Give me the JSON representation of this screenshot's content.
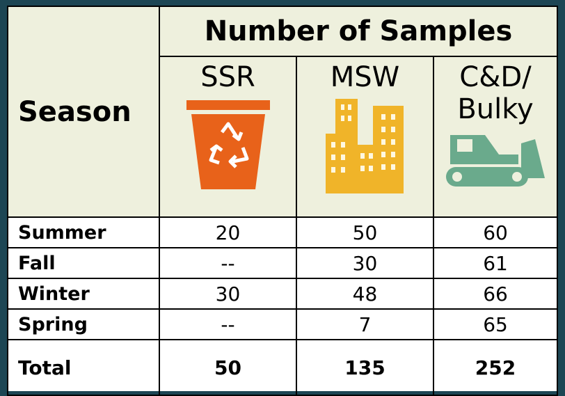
{
  "header": {
    "season": "Season",
    "group": "Number of Samples",
    "columns": [
      "SSR",
      "MSW",
      "C&D/ Bulky"
    ]
  },
  "table": {
    "rows": [
      [
        "Summer",
        20,
        50,
        60
      ],
      [
        "Fall",
        "--",
        30,
        61
      ],
      [
        "Winter",
        30,
        48,
        66
      ],
      [
        "Spring",
        "--",
        7,
        65
      ]
    ],
    "total": [
      "Total",
      50,
      135,
      252
    ]
  }
}
